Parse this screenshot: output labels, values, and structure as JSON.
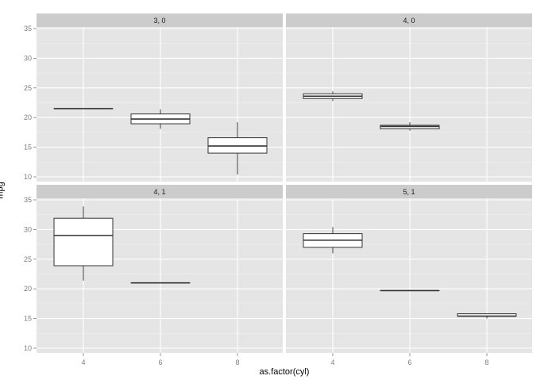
{
  "chart_data": {
    "type": "boxplot",
    "title": "",
    "xlabel": "as.factor(cyl)",
    "ylabel": "mpg",
    "categories": [
      "4",
      "6",
      "8"
    ],
    "y_ticks": [
      10,
      15,
      20,
      25,
      30,
      35
    ],
    "ylim": [
      9.3,
      36.2
    ],
    "grid": true,
    "facet_layout": {
      "rows": 2,
      "cols": 2
    },
    "panel_background": "#e5e5e5",
    "strip_background": "#cccccc",
    "gridline_color": "#ffffff",
    "box_fill": "#ffffff",
    "box_stroke": "#333333",
    "facets": [
      {
        "label": "3, 0",
        "boxes": [
          {
            "category": "4",
            "lower": 21.5,
            "q1": 21.5,
            "median": 21.5,
            "q3": 21.5,
            "upper": 21.5
          },
          {
            "category": "6",
            "lower": 18.1,
            "q1": 18.95,
            "median": 19.75,
            "q3": 20.6,
            "upper": 21.4
          },
          {
            "category": "8",
            "lower": 10.4,
            "q1": 14.0,
            "median": 15.2,
            "q3": 16.6,
            "upper": 19.2
          }
        ]
      },
      {
        "label": "4, 0",
        "boxes": [
          {
            "category": "4",
            "lower": 22.8,
            "q1": 23.2,
            "median": 23.6,
            "q3": 24.0,
            "upper": 24.4
          },
          {
            "category": "6",
            "lower": 17.8,
            "q1": 18.1,
            "median": 18.5,
            "q3": 18.7,
            "upper": 19.2
          }
        ]
      },
      {
        "label": "4, 1",
        "boxes": [
          {
            "category": "4",
            "lower": 21.4,
            "q1": 23.9,
            "median": 29.0,
            "q3": 31.9,
            "upper": 33.9
          },
          {
            "category": "6",
            "lower": 21.0,
            "q1": 21.0,
            "median": 21.0,
            "q3": 21.0,
            "upper": 21.0
          }
        ]
      },
      {
        "label": "5, 1",
        "boxes": [
          {
            "category": "4",
            "lower": 26.0,
            "q1": 27.0,
            "median": 28.2,
            "q3": 29.3,
            "upper": 30.4
          },
          {
            "category": "6",
            "lower": 19.7,
            "q1": 19.7,
            "median": 19.7,
            "q3": 19.7,
            "upper": 19.7
          },
          {
            "category": "8",
            "lower": 15.0,
            "q1": 15.4,
            "median": 15.4,
            "q3": 15.8,
            "upper": 15.8
          }
        ]
      }
    ]
  }
}
